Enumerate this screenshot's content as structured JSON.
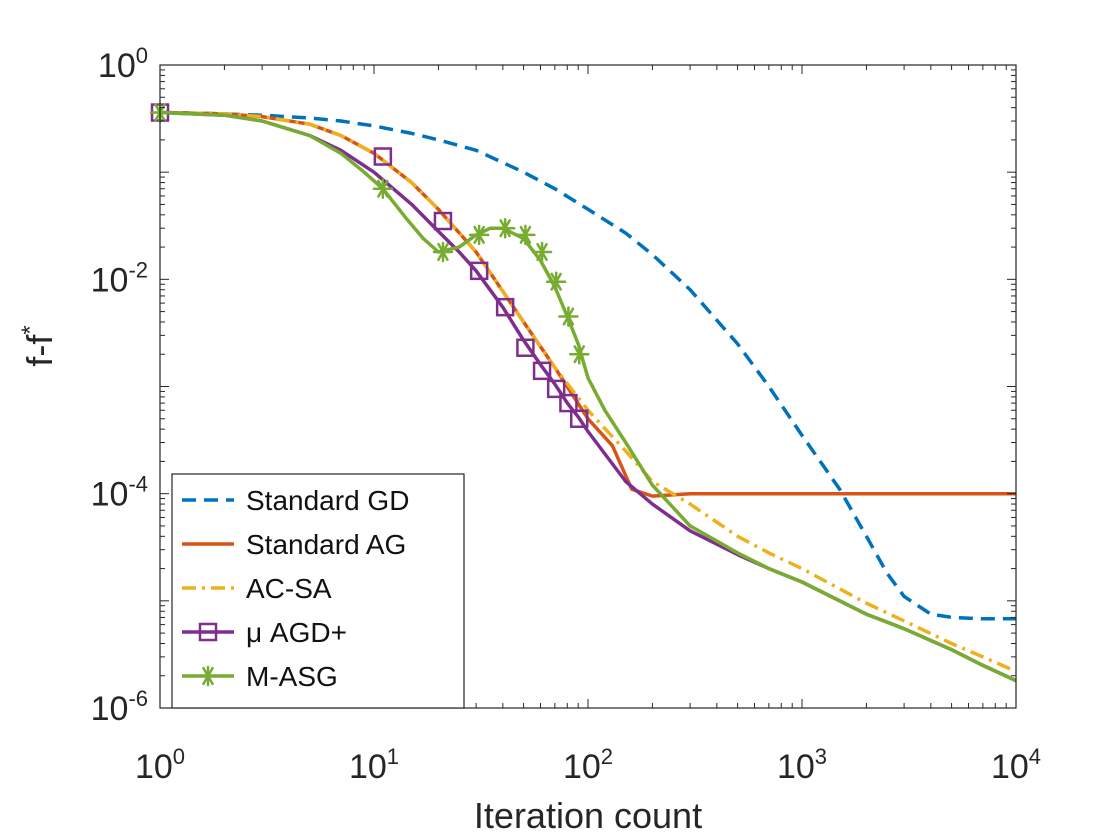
{
  "chart_data": {
    "type": "line",
    "title": "",
    "xlabel": "Iteration count",
    "ylabel": "f-f*",
    "xscale": "log",
    "yscale": "log",
    "xlim": [
      1,
      10000
    ],
    "ylim": [
      1e-06,
      1
    ],
    "grid": false,
    "legend_position": "bottom-left",
    "x_ticks": [
      {
        "base": "10",
        "exp": "0"
      },
      {
        "base": "10",
        "exp": "1"
      },
      {
        "base": "10",
        "exp": "2"
      },
      {
        "base": "10",
        "exp": "3"
      },
      {
        "base": "10",
        "exp": "4"
      }
    ],
    "y_ticks": [
      {
        "base": "10",
        "exp": "0"
      },
      {
        "base": "10",
        "exp": "-2"
      },
      {
        "base": "10",
        "exp": "-4"
      },
      {
        "base": "10",
        "exp": "-6"
      }
    ],
    "series": [
      {
        "name": "Standard GD",
        "color": "#0072BD",
        "dash": "dashed",
        "marker": "none",
        "x": [
          1,
          1.5,
          2,
          3,
          5,
          7,
          10,
          15,
          20,
          30,
          50,
          70,
          100,
          150,
          200,
          300,
          500,
          700,
          1000,
          1500,
          2000,
          2500,
          3000,
          4000,
          5000,
          7000,
          10000
        ],
        "y": [
          0.36,
          0.355,
          0.35,
          0.34,
          0.32,
          0.3,
          0.27,
          0.23,
          0.2,
          0.16,
          0.1,
          0.07,
          0.045,
          0.027,
          0.017,
          0.008,
          0.0025,
          0.001,
          0.00035,
          0.00011,
          4e-05,
          1.8e-05,
          1.1e-05,
          7.5e-06,
          7e-06,
          6.8e-06,
          6.8e-06
        ]
      },
      {
        "name": "Standard AG",
        "color": "#D95319",
        "dash": "solid",
        "marker": "none",
        "x": [
          1,
          2,
          3,
          5,
          7,
          10,
          15,
          20,
          30,
          50,
          70,
          100,
          130,
          160,
          200,
          300,
          500,
          1000,
          2000,
          5000,
          10000
        ],
        "y": [
          0.36,
          0.35,
          0.33,
          0.28,
          0.22,
          0.15,
          0.08,
          0.045,
          0.018,
          0.004,
          0.0015,
          0.0005,
          0.00028,
          0.00011,
          9.5e-05,
          0.0001,
          0.0001,
          0.0001,
          0.0001,
          0.0001,
          0.0001
        ]
      },
      {
        "name": "AC-SA",
        "color": "#EDB120",
        "dash": "dashdot",
        "marker": "none",
        "x": [
          1,
          2,
          3,
          5,
          7,
          10,
          15,
          20,
          30,
          50,
          70,
          100,
          150,
          200,
          300,
          500,
          700,
          1000,
          2000,
          3000,
          5000,
          7000,
          10000
        ],
        "y": [
          0.36,
          0.35,
          0.33,
          0.28,
          0.22,
          0.15,
          0.08,
          0.045,
          0.018,
          0.004,
          0.0015,
          0.0006,
          0.00025,
          0.00013,
          8e-05,
          4e-05,
          2.8e-05,
          2e-05,
          9.5e-06,
          6.5e-06,
          4e-06,
          3e-06,
          2.2e-06
        ]
      },
      {
        "name": "μ AGD+",
        "color": "#7E2F8E",
        "dash": "solid",
        "marker": "square",
        "x": [
          1,
          2,
          3,
          5,
          7,
          10,
          15,
          20,
          25,
          30,
          40,
          50,
          60,
          70,
          80,
          90,
          100,
          150,
          200,
          300,
          500,
          700,
          1000,
          2000,
          3000,
          5000,
          7000,
          10000
        ],
        "y": [
          0.36,
          0.34,
          0.3,
          0.22,
          0.16,
          0.1,
          0.05,
          0.028,
          0.018,
          0.012,
          0.0055,
          0.0027,
          0.0016,
          0.00105,
          0.0007,
          0.00052,
          0.00038,
          0.00013,
          8e-05,
          4.5e-05,
          2.7e-05,
          2e-05,
          1.5e-05,
          7.5e-06,
          5.5e-06,
          3.5e-06,
          2.5e-06,
          1.8e-06
        ],
        "marker_x": [
          1,
          11,
          21,
          31,
          41,
          51,
          61,
          71,
          81,
          91
        ],
        "marker_y": [
          0.36,
          0.14,
          0.035,
          0.012,
          0.0055,
          0.0023,
          0.0014,
          0.00095,
          0.0007,
          0.0005
        ]
      },
      {
        "name": "M-ASG",
        "color": "#77AC30",
        "dash": "solid",
        "marker": "asterisk",
        "x": [
          1,
          2,
          3,
          5,
          7,
          9,
          11,
          14,
          17,
          20,
          25,
          30,
          35,
          40,
          50,
          60,
          70,
          80,
          90,
          100,
          120,
          150,
          200,
          300,
          500,
          700,
          1000,
          2000,
          3000,
          5000,
          7000,
          10000
        ],
        "y": [
          0.36,
          0.34,
          0.3,
          0.22,
          0.15,
          0.1,
          0.07,
          0.038,
          0.024,
          0.018,
          0.02,
          0.026,
          0.03,
          0.03,
          0.024,
          0.015,
          0.0085,
          0.0045,
          0.0025,
          0.0012,
          0.0006,
          0.0003,
          0.00012,
          5e-05,
          2.8e-05,
          2e-05,
          1.5e-05,
          7.5e-06,
          5.5e-06,
          3.5e-06,
          2.5e-06,
          1.8e-06
        ],
        "marker_x": [
          1,
          11,
          21,
          31,
          41,
          51,
          61,
          71,
          81,
          91
        ],
        "marker_y": [
          0.36,
          0.07,
          0.018,
          0.026,
          0.03,
          0.026,
          0.018,
          0.0095,
          0.0045,
          0.002
        ]
      }
    ]
  }
}
